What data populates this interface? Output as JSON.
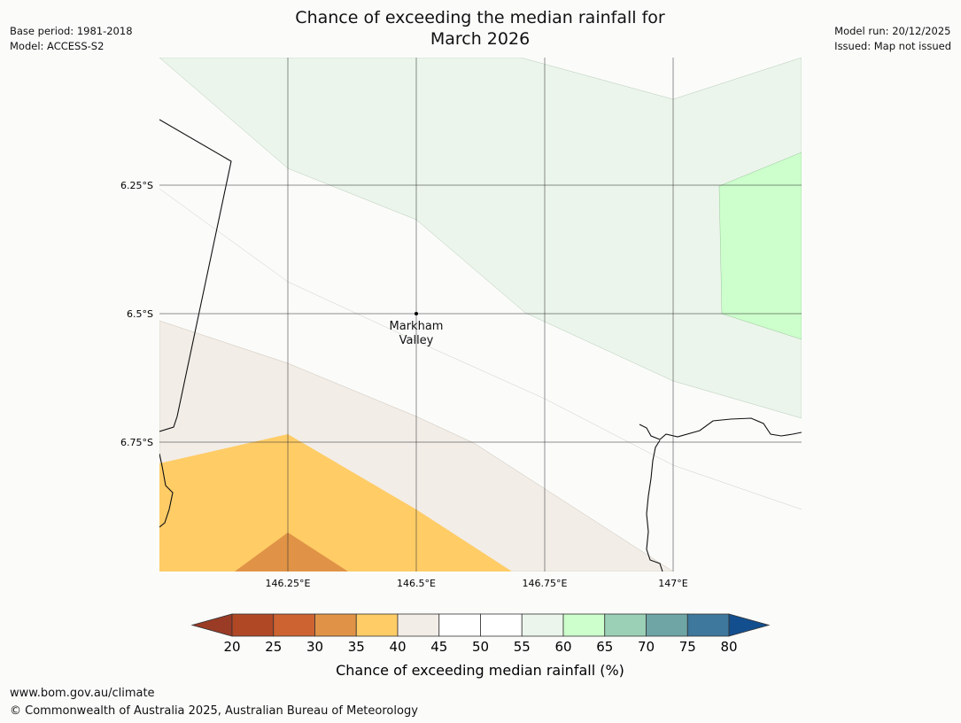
{
  "title": {
    "line1": "Chance of exceeding the median rainfall for",
    "line2": "March 2026"
  },
  "meta_left": {
    "base_period": "Base period: 1981-2018",
    "model": "Model: ACCESS-S2"
  },
  "meta_right": {
    "model_run": "Model run: 20/12/2025",
    "issued": "Issued: Map not issued"
  },
  "map": {
    "lat_labels": [
      "6.25°S",
      "6.5°S",
      "6.75°S"
    ],
    "lon_labels": [
      "146.25°E",
      "146.5°E",
      "146.75°E",
      "147°E"
    ],
    "place": {
      "line1": "Markham",
      "line2": "Valley"
    }
  },
  "colorbar": {
    "label": "Chance of exceeding median rainfall (%)",
    "ticks": [
      "20",
      "25",
      "30",
      "35",
      "40",
      "45",
      "50",
      "55",
      "60",
      "65",
      "70",
      "75",
      "80"
    ],
    "colors": [
      "#b04826",
      "#cc6331",
      "#e09346",
      "#ffcc66",
      "#f2ede7",
      "#ffffff",
      "#ffffff",
      "#ebf5eb",
      "#ccffcc",
      "#9bd0b7",
      "#6fa5a5",
      "#3e789c"
    ],
    "under_color": "#9a3b26",
    "over_color": "#134f8e"
  },
  "footer": {
    "url": "www.bom.gov.au/climate",
    "copyright": "© Commonwealth of Australia 2025, Australian Bureau of Meteorology"
  }
}
